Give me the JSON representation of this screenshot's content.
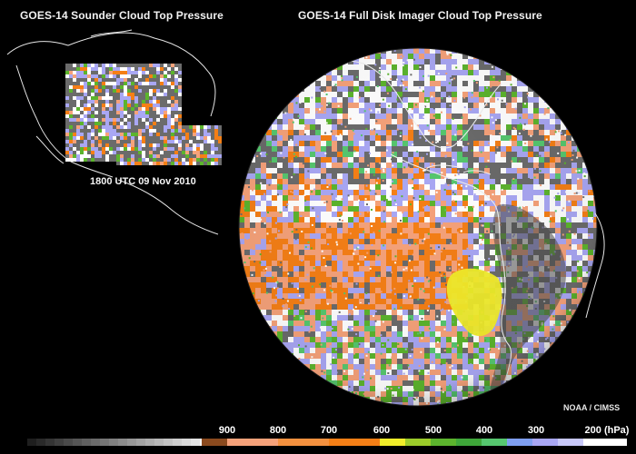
{
  "titles": {
    "left": "GOES-14 Sounder Cloud Top Pressure",
    "right": "GOES-14 Full Disk Imager Cloud Top Pressure"
  },
  "timestamp": "1800 UTC  09 Nov 2010",
  "credit": "NOAA / CIMSS",
  "colorbar": {
    "labels": [
      "900",
      "800",
      "700",
      "600",
      "500",
      "400",
      "300",
      "200 (hPa)"
    ],
    "colors": {
      "clear_gray": "#6b6b6b",
      "p900": "#8b4a1e",
      "p800": "#f6a27a",
      "p700": "#f57f16",
      "p600": "#f2ee2a",
      "p500": "#5cb42d",
      "p400": "#56c76f",
      "p300": "#a9a7f4",
      "p200": "#ffffff"
    }
  }
}
